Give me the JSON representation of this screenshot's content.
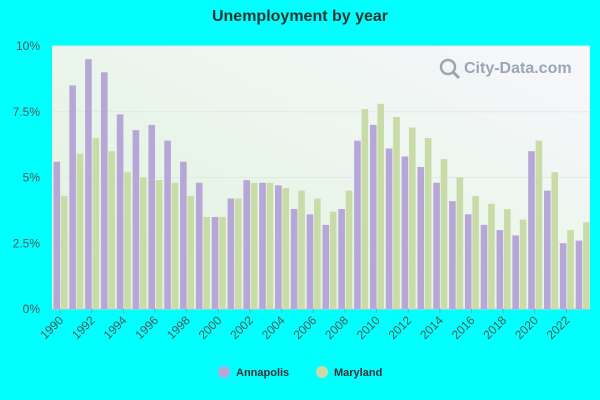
{
  "chart_data": {
    "type": "bar",
    "title": "Unemployment by year",
    "xlabel": "",
    "ylabel": "",
    "ylim": [
      0,
      10
    ],
    "y_ticks": [
      0,
      2.5,
      5,
      7.5,
      10
    ],
    "y_tick_labels": [
      "0%",
      "2.5%",
      "5%",
      "7.5%",
      "10%"
    ],
    "categories": [
      1990,
      1991,
      1992,
      1993,
      1994,
      1995,
      1996,
      1997,
      1998,
      1999,
      2000,
      2001,
      2002,
      2003,
      2004,
      2005,
      2006,
      2007,
      2008,
      2009,
      2010,
      2011,
      2012,
      2013,
      2014,
      2015,
      2016,
      2017,
      2018,
      2019,
      2020,
      2021,
      2022,
      2023
    ],
    "x_tick_labels": [
      "1990",
      "1992",
      "1994",
      "1996",
      "1998",
      "2000",
      "2002",
      "2004",
      "2006",
      "2008",
      "2010",
      "2012",
      "2014",
      "2016",
      "2018",
      "2020",
      "2022"
    ],
    "series": [
      {
        "name": "Annapolis",
        "color": "#b7a6d8",
        "values": [
          5.6,
          8.5,
          9.5,
          9.0,
          7.4,
          6.8,
          7.0,
          6.4,
          5.6,
          4.8,
          3.5,
          4.2,
          4.9,
          4.8,
          4.7,
          3.8,
          3.6,
          3.2,
          3.8,
          6.4,
          7.0,
          6.1,
          5.8,
          5.4,
          4.8,
          4.1,
          3.6,
          3.2,
          3.0,
          2.8,
          6.0,
          4.5,
          2.5,
          2.6
        ]
      },
      {
        "name": "Maryland",
        "color": "#c9dca8",
        "values": [
          4.3,
          5.9,
          6.5,
          6.0,
          5.2,
          5.0,
          4.9,
          4.8,
          4.3,
          3.5,
          3.5,
          4.2,
          4.8,
          4.8,
          4.6,
          4.5,
          4.2,
          3.7,
          4.5,
          7.6,
          7.8,
          7.3,
          6.9,
          6.5,
          5.7,
          5.0,
          4.3,
          4.0,
          3.8,
          3.4,
          6.4,
          5.2,
          3.0,
          3.3
        ]
      }
    ],
    "grid": true,
    "legend_position": "bottom-center"
  },
  "watermark": {
    "text": "City-Data.com",
    "icon": "magnifier-icon"
  }
}
